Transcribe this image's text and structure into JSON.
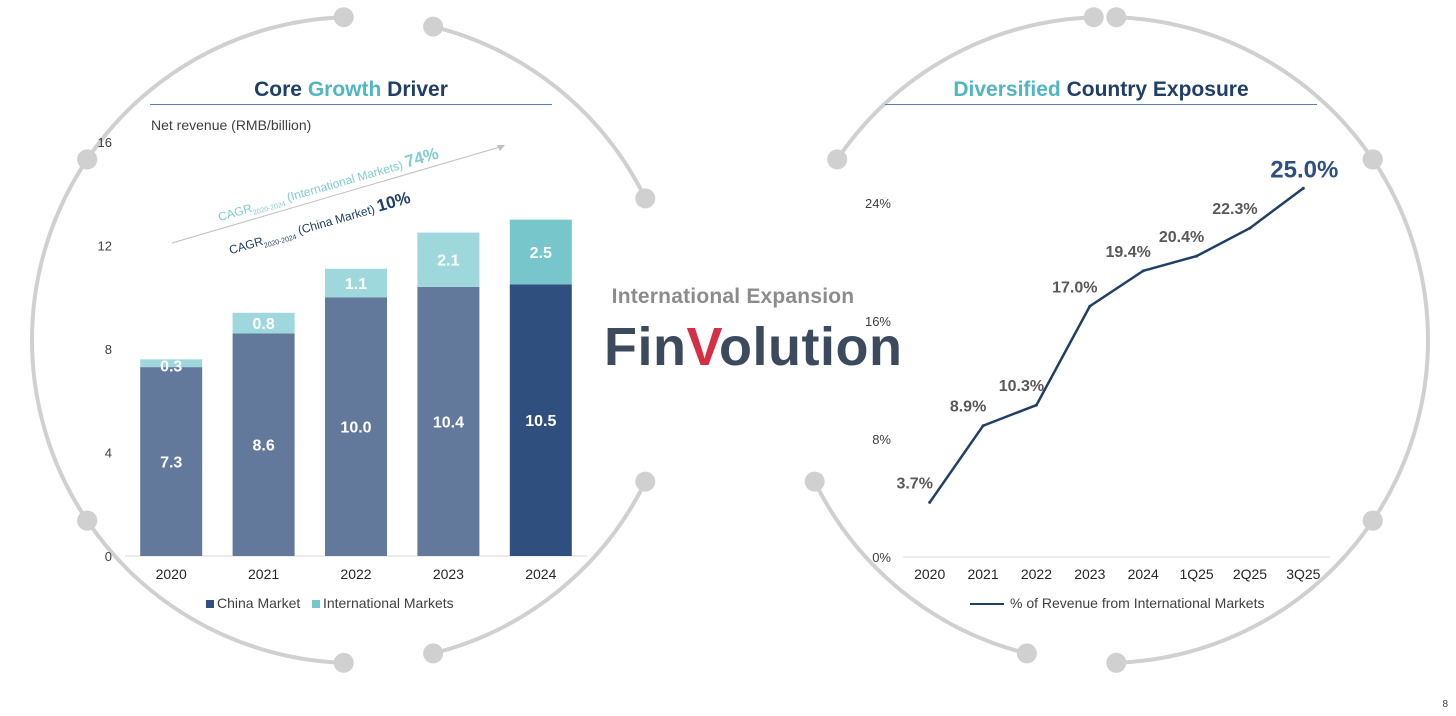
{
  "left_title": {
    "part1": "Core",
    "part2": "Growth",
    "part3": "Driver"
  },
  "right_title": {
    "part1": "Diversified",
    "part2": "Country Exposure"
  },
  "center": {
    "tagline": "International Expansion",
    "logo_part1": "Fin",
    "logo_accent": "V",
    "logo_part2": "olution"
  },
  "page_number": "8",
  "cagr": {
    "intl": {
      "prefix": "CAGR",
      "sub": "2020-2024",
      "suffix": " (International Markets) ",
      "value": "74%"
    },
    "china": {
      "prefix": "CAGR",
      "sub": "2020-2024",
      "suffix": " (China Market) ",
      "value": "10%"
    }
  },
  "colors": {
    "china": "#63799c",
    "china_latest": "#2f4f7f",
    "intl": "#9fd8dc",
    "intl_latest": "#76c6cc",
    "line": "#1f3f66",
    "ring": "#d0d0d0"
  },
  "chart_data": [
    {
      "type": "bar",
      "title": "Core Growth Driver",
      "ylabel": "Net revenue (RMB/billion)",
      "categories": [
        "2020",
        "2021",
        "2022",
        "2023",
        "2024"
      ],
      "series": [
        {
          "name": "China Market",
          "values": [
            7.3,
            8.6,
            10.0,
            10.4,
            10.5
          ],
          "labels": [
            "7.3",
            "8.6",
            "10.0",
            "10.4",
            "10.5"
          ]
        },
        {
          "name": "International Markets",
          "values": [
            0.3,
            0.8,
            1.1,
            2.1,
            2.5
          ],
          "labels": [
            "0.3",
            "0.8",
            "1.1",
            "2.1",
            "2.5"
          ]
        }
      ],
      "stacked": true,
      "ylim": [
        0,
        16
      ],
      "yticks": [
        "0",
        "4",
        "8",
        "12",
        "16"
      ],
      "legend": "bottom"
    },
    {
      "type": "line",
      "title": "Diversified Country Exposure",
      "categories": [
        "2020",
        "2021",
        "2022",
        "2023",
        "2024",
        "1Q25",
        "2Q25",
        "3Q25"
      ],
      "series": [
        {
          "name": "% of Revenue from International Markets",
          "values": [
            3.7,
            8.9,
            10.3,
            17.0,
            19.4,
            20.4,
            22.3,
            25.0
          ],
          "labels": [
            "3.7%",
            "8.9%",
            "10.3%",
            "17.0%",
            "19.4%",
            "20.4%",
            "22.3%",
            "25.0%"
          ]
        }
      ],
      "ylim": [
        0,
        28
      ],
      "yticks": [
        "0%",
        "8%",
        "16%",
        "24%"
      ],
      "legend": "bottom"
    }
  ]
}
